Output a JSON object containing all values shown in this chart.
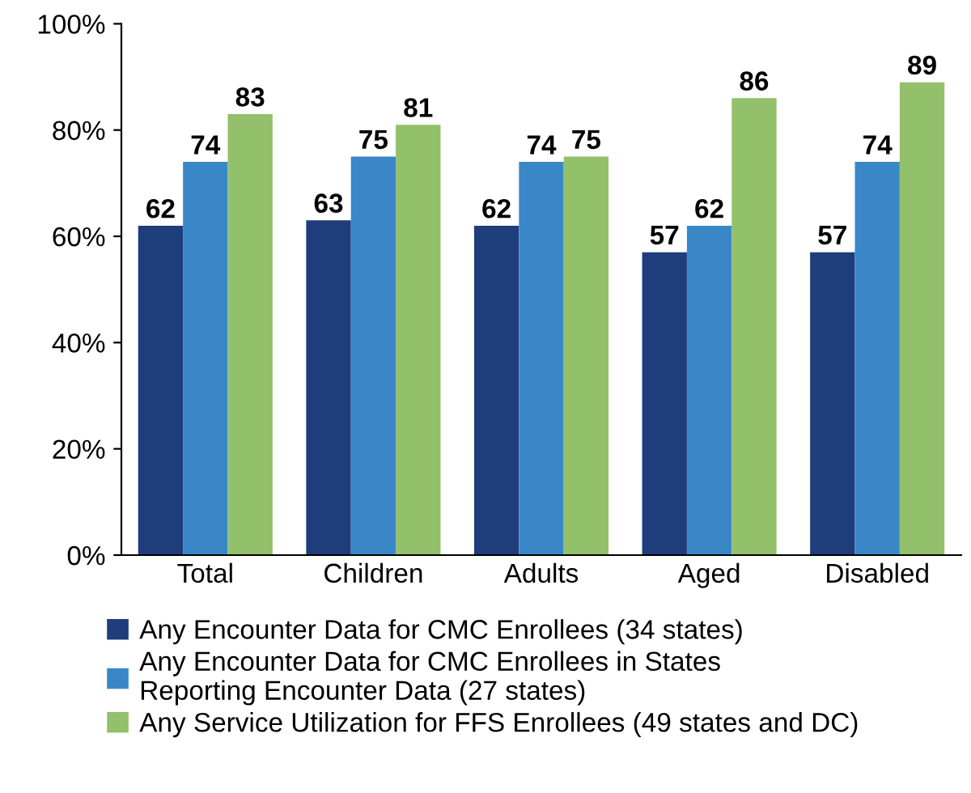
{
  "chart_data": {
    "type": "bar",
    "categories": [
      "Total",
      "Children",
      "Adults",
      "Aged",
      "Disabled"
    ],
    "series": [
      {
        "name": "Any Encounter Data for CMC Enrollees (34 states)",
        "color": "#1f3d7a",
        "values": [
          62,
          63,
          62,
          57,
          57
        ]
      },
      {
        "name": "Any Encounter Data for CMC Enrollees in States\nReporting Encounter Data (27 states)",
        "color": "#3a87c8",
        "values": [
          74,
          75,
          74,
          62,
          74
        ]
      },
      {
        "name": "Any Service Utilization for FFS Enrollees (49 states and DC)",
        "color": "#93c06a",
        "values": [
          83,
          81,
          75,
          86,
          89
        ]
      }
    ],
    "ylim": [
      0,
      100
    ],
    "yticks": [
      {
        "value": 0,
        "label": "0%"
      },
      {
        "value": 20,
        "label": "20%"
      },
      {
        "value": 40,
        "label": "40%"
      },
      {
        "value": 60,
        "label": "60%"
      },
      {
        "value": 80,
        "label": "80%"
      },
      {
        "value": 100,
        "label": "100%"
      }
    ],
    "data_labels": true,
    "legend": "bottom",
    "grid": false
  }
}
